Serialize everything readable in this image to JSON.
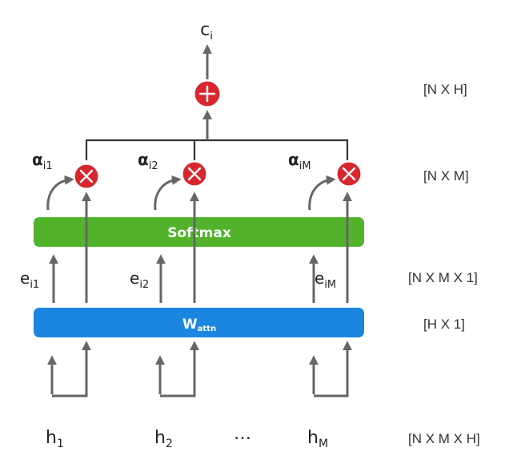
{
  "output": {
    "label": "c",
    "sub": "i"
  },
  "combine_op": "plus",
  "alphas": [
    {
      "label": "α",
      "sub": "i1"
    },
    {
      "label": "α",
      "sub": "i2"
    },
    {
      "label": "α",
      "sub": "iM"
    }
  ],
  "multiply_op": "times",
  "softmax": {
    "label": "Softmax",
    "color": "#52b32a"
  },
  "energies": [
    {
      "label": "e",
      "sub": "i1"
    },
    {
      "label": "e",
      "sub": "i2"
    },
    {
      "label": "e",
      "sub": "iM"
    }
  ],
  "wattn": {
    "label": "W",
    "sub": "attn",
    "color": "#1a86e0"
  },
  "inputs": [
    {
      "label": "h",
      "sub": "1"
    },
    {
      "label": "h",
      "sub": "2"
    },
    {
      "label": "…",
      "sub": ""
    },
    {
      "label": "h",
      "sub": "M"
    }
  ],
  "dims": [
    "[N X H]",
    "[N X M]",
    "[N X M X 1]",
    "[H X 1]",
    "[N X M X H]"
  ]
}
